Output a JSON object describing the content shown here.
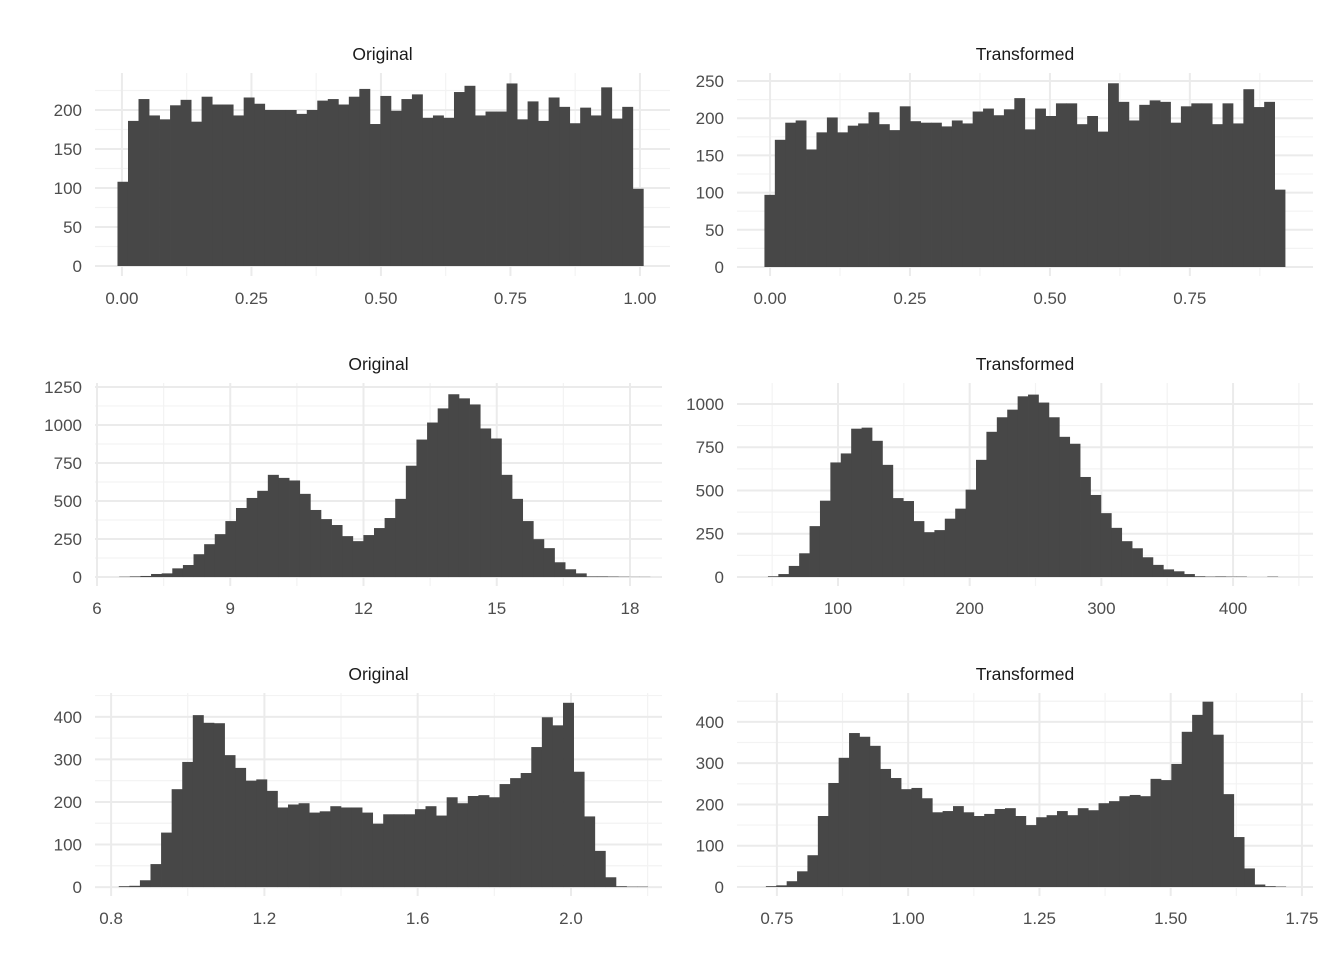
{
  "colors": {
    "bar_fill": "#474747",
    "grid_major": "#ebebeb",
    "grid_minor": "#f3f3f3",
    "tick_text": "#4d4d4d"
  },
  "chart_data": [
    {
      "type": "bar",
      "title": "Original",
      "bin_start": -0.0086,
      "binwidth": 0.0203,
      "values": [
        108,
        186,
        214,
        193,
        188,
        206,
        213,
        185,
        217,
        207,
        207,
        193,
        216,
        208,
        200,
        200,
        200,
        195,
        200,
        212,
        214,
        207,
        217,
        227,
        182,
        218,
        199,
        214,
        220,
        190,
        193,
        190,
        223,
        231,
        193,
        198,
        198,
        234,
        188,
        211,
        186,
        216,
        204,
        183,
        203,
        193,
        229,
        189,
        204,
        99
      ],
      "xlim": [
        -0.052,
        1.058
      ],
      "ylim": [
        -12.8,
        247.4
      ],
      "xticks": [
        0,
        0.25,
        0.5,
        0.75,
        1
      ],
      "xtick_labels": [
        "0.00",
        "0.25",
        "0.50",
        "0.75",
        "1.00"
      ],
      "yticks": [
        0,
        50,
        100,
        150,
        200
      ],
      "ytick_labels": [
        "0",
        "50",
        "100",
        "150",
        "200"
      ],
      "grid": true
    },
    {
      "type": "bar",
      "title": "Transformed",
      "bin_start": -0.01,
      "binwidth": 0.0186,
      "values": [
        97,
        171,
        194,
        197,
        158,
        181,
        201,
        181,
        190,
        193,
        208,
        192,
        184,
        216,
        196,
        194,
        194,
        189,
        197,
        193,
        209,
        213,
        204,
        212,
        227,
        185,
        213,
        203,
        220,
        220,
        192,
        203,
        182,
        247,
        222,
        197,
        218,
        224,
        222,
        194,
        216,
        220,
        220,
        192,
        220,
        193,
        239,
        215,
        222,
        104
      ],
      "xlim": [
        -0.059,
        0.97
      ],
      "ylim": [
        -12.1,
        260.8
      ],
      "xticks": [
        0,
        0.25,
        0.5,
        0.75
      ],
      "xtick_labels": [
        "0.00",
        "0.25",
        "0.50",
        "0.75"
      ],
      "yticks": [
        0,
        50,
        100,
        150,
        200,
        250
      ],
      "ytick_labels": [
        "0",
        "50",
        "100",
        "150",
        "200",
        "250"
      ],
      "grid": true
    },
    {
      "type": "bar",
      "title": "Original",
      "bin_start": 6.5,
      "binwidth": 0.239,
      "values": [
        2,
        4,
        7,
        20,
        24,
        57,
        79,
        150,
        216,
        282,
        368,
        454,
        520,
        567,
        672,
        652,
        635,
        547,
        441,
        381,
        342,
        269,
        236,
        276,
        322,
        388,
        514,
        732,
        904,
        1016,
        1109,
        1202,
        1175,
        1135,
        977,
        911,
        672,
        514,
        368,
        249,
        190,
        97,
        51,
        24,
        4,
        4,
        3,
        2,
        1,
        1
      ],
      "xlim": [
        5.955,
        18.72
      ],
      "ylim": [
        -59,
        1276
      ],
      "xticks": [
        6,
        9,
        12,
        15,
        18
      ],
      "xtick_labels": [
        "6",
        "9",
        "12",
        "15",
        "18"
      ],
      "yticks": [
        0,
        250,
        500,
        750,
        1000,
        1250
      ],
      "ytick_labels": [
        "0",
        "250",
        "500",
        "750",
        "1000",
        "1250"
      ],
      "grid": true
    },
    {
      "type": "bar",
      "title": "Transformed",
      "bin_start": 46.8,
      "binwidth": 7.9,
      "values": [
        4,
        17,
        64,
        137,
        294,
        441,
        662,
        714,
        857,
        863,
        787,
        648,
        456,
        439,
        323,
        259,
        271,
        337,
        395,
        505,
        677,
        839,
        923,
        967,
        1044,
        1054,
        1008,
        923,
        810,
        770,
        578,
        474,
        369,
        284,
        207,
        166,
        114,
        70,
        44,
        33,
        17,
        4,
        2,
        3,
        2,
        2,
        0,
        0,
        2
      ],
      "xlim": [
        23.3,
        460.7
      ],
      "ylim": [
        -52,
        1121
      ],
      "xticks": [
        100,
        200,
        300,
        400
      ],
      "xtick_labels": [
        "100",
        "200",
        "300",
        "400"
      ],
      "yticks": [
        0,
        250,
        500,
        750,
        1000
      ],
      "ytick_labels": [
        "0",
        "250",
        "500",
        "750",
        "1000"
      ],
      "grid": true
    },
    {
      "type": "bar",
      "title": "Original",
      "bin_start": 0.82,
      "binwidth": 0.0276,
      "values": [
        2,
        3,
        16,
        54,
        128,
        230,
        294,
        404,
        386,
        385,
        310,
        280,
        250,
        253,
        226,
        187,
        194,
        197,
        175,
        178,
        190,
        187,
        187,
        175,
        149,
        171,
        171,
        171,
        183,
        190,
        168,
        211,
        197,
        214,
        216,
        211,
        242,
        256,
        268,
        329,
        399,
        380,
        433,
        271,
        166,
        85,
        23,
        2,
        1,
        1
      ],
      "xlim": [
        0.758,
        2.2375
      ],
      "ylim": [
        -21,
        456
      ],
      "xticks": [
        0.8,
        1.2,
        1.6,
        2.0
      ],
      "xtick_labels": [
        "0.8",
        "1.2",
        "1.6",
        "2.0"
      ],
      "yticks": [
        0,
        100,
        200,
        300,
        400
      ],
      "ytick_labels": [
        "0",
        "100",
        "200",
        "300",
        "400"
      ],
      "grid": true
    },
    {
      "type": "bar",
      "title": "Transformed",
      "bin_start": 0.729,
      "binwidth": 0.0198,
      "values": [
        2,
        4,
        14,
        38,
        77,
        172,
        252,
        313,
        373,
        364,
        342,
        286,
        264,
        237,
        240,
        215,
        181,
        184,
        196,
        181,
        172,
        177,
        189,
        191,
        172,
        150,
        169,
        174,
        184,
        174,
        191,
        186,
        203,
        208,
        220,
        223,
        220,
        262,
        259,
        298,
        376,
        417,
        449,
        369,
        225,
        121,
        45,
        6,
        2,
        1
      ],
      "xlim": [
        0.674,
        1.771
      ],
      "ylim": [
        -21.8,
        470
      ],
      "xticks": [
        0.75,
        1.0,
        1.25,
        1.5,
        1.75
      ],
      "xtick_labels": [
        "0.75",
        "1.00",
        "1.25",
        "1.50",
        "1.75"
      ],
      "yticks": [
        0,
        100,
        200,
        300,
        400
      ],
      "ytick_labels": [
        "0",
        "100",
        "200",
        "300",
        "400"
      ],
      "grid": true
    }
  ]
}
